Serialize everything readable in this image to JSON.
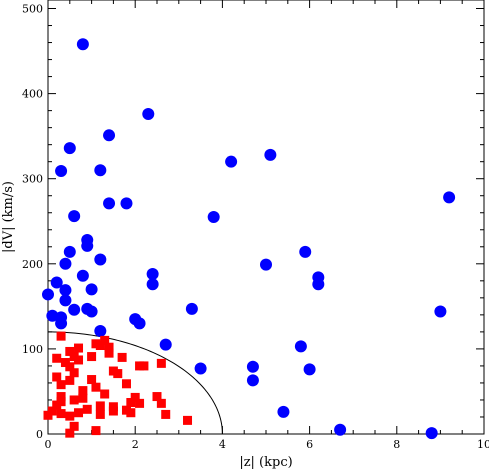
{
  "chart_data": {
    "type": "scatter",
    "title": "",
    "xlabel": "|z| (kpc)",
    "ylabel": "|dV| (km/s)",
    "xlim": [
      0,
      10
    ],
    "ylim": [
      0,
      510
    ],
    "x_ticks": [
      0,
      2,
      4,
      6,
      8,
      10
    ],
    "y_ticks": [
      0,
      100,
      200,
      300,
      400,
      500
    ],
    "grid": false,
    "legend": "none",
    "series": [
      {
        "marker": "circle",
        "color": "#0000ff",
        "points": [
          [
            0.8,
            458
          ],
          [
            2.3,
            376
          ],
          [
            0.5,
            336
          ],
          [
            1.4,
            351
          ],
          [
            0.3,
            309
          ],
          [
            1.2,
            310
          ],
          [
            4.2,
            320
          ],
          [
            5.1,
            328
          ],
          [
            9.2,
            278
          ],
          [
            1.4,
            271
          ],
          [
            1.8,
            271
          ],
          [
            3.8,
            255
          ],
          [
            0.6,
            256
          ],
          [
            0.9,
            228
          ],
          [
            0.9,
            221
          ],
          [
            0.5,
            214
          ],
          [
            5.9,
            214
          ],
          [
            1.2,
            205
          ],
          [
            0.4,
            200
          ],
          [
            5.0,
            199
          ],
          [
            0.8,
            186
          ],
          [
            2.4,
            188
          ],
          [
            6.2,
            184
          ],
          [
            6.2,
            176
          ],
          [
            2.4,
            176
          ],
          [
            0.2,
            178
          ],
          [
            0.4,
            169
          ],
          [
            1.0,
            170
          ],
          [
            0.0,
            164
          ],
          [
            0.4,
            157
          ],
          [
            0.6,
            146
          ],
          [
            0.9,
            147
          ],
          [
            1.0,
            144
          ],
          [
            3.3,
            147
          ],
          [
            9.0,
            144
          ],
          [
            0.1,
            139
          ],
          [
            0.3,
            137
          ],
          [
            2.0,
            135
          ],
          [
            2.1,
            130
          ],
          [
            0.3,
            130
          ],
          [
            1.2,
            121
          ],
          [
            2.7,
            105
          ],
          [
            5.8,
            103
          ],
          [
            4.7,
            79
          ],
          [
            3.5,
            77
          ],
          [
            6.0,
            76
          ],
          [
            4.7,
            63
          ],
          [
            5.4,
            26
          ],
          [
            6.7,
            5
          ],
          [
            8.8,
            1
          ]
        ]
      },
      {
        "marker": "square",
        "color": "#ff0000",
        "points": [
          [
            0.3,
            115
          ],
          [
            1.3,
            110
          ],
          [
            1.2,
            104
          ],
          [
            1.4,
            102
          ],
          [
            1.1,
            106
          ],
          [
            1.4,
            95
          ],
          [
            0.7,
            101
          ],
          [
            0.5,
            97
          ],
          [
            0.2,
            89
          ],
          [
            0.6,
            91
          ],
          [
            0.7,
            87
          ],
          [
            1.0,
            91
          ],
          [
            1.7,
            90
          ],
          [
            0.4,
            84
          ],
          [
            2.1,
            80
          ],
          [
            2.6,
            83
          ],
          [
            0.5,
            79
          ],
          [
            2.2,
            80
          ],
          [
            0.6,
            72
          ],
          [
            1.5,
            74
          ],
          [
            1.6,
            71
          ],
          [
            0.2,
            67
          ],
          [
            0.5,
            63
          ],
          [
            0.3,
            58
          ],
          [
            1.0,
            64
          ],
          [
            1.8,
            59
          ],
          [
            0.8,
            51
          ],
          [
            1.1,
            55
          ],
          [
            1.3,
            47
          ],
          [
            0.3,
            44
          ],
          [
            0.6,
            40
          ],
          [
            0.8,
            42
          ],
          [
            2.0,
            43
          ],
          [
            2.5,
            44
          ],
          [
            0.3,
            38
          ],
          [
            1.9,
            37
          ],
          [
            2.1,
            36
          ],
          [
            0.2,
            34
          ],
          [
            1.5,
            32
          ],
          [
            2.6,
            36
          ],
          [
            0.9,
            29
          ],
          [
            1.5,
            27
          ],
          [
            0.7,
            25
          ],
          [
            1.8,
            28
          ],
          [
            0.1,
            27
          ],
          [
            1.2,
            23
          ],
          [
            1.9,
            25
          ],
          [
            2.7,
            23
          ],
          [
            0.3,
            24
          ],
          [
            0.5,
            21
          ],
          [
            0.6,
            9
          ],
          [
            0.5,
            1
          ],
          [
            1.1,
            4
          ],
          [
            1.2,
            33
          ],
          [
            3.2,
            16
          ],
          [
            0.0,
            22
          ]
        ]
      }
    ],
    "annotations": [
      {
        "type": "curve",
        "shape": "quarter-ellipse",
        "x_intercept": 4.0,
        "y_intercept": 120,
        "color": "#000000"
      }
    ]
  }
}
